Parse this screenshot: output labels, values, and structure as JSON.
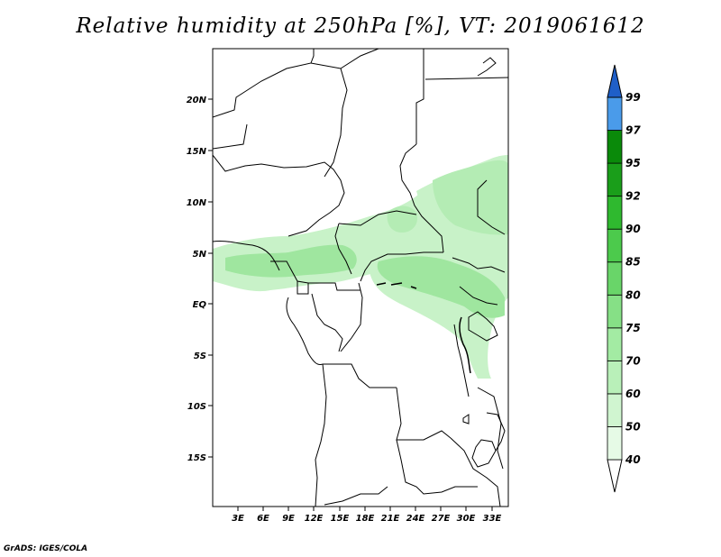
{
  "title": "Relative humidity at 250hPa [%], VT: 2019061612",
  "credit": "GrADS: IGES/COLA",
  "map": {
    "lon_range": [
      0,
      35
    ],
    "lat_range": [
      -20,
      25
    ],
    "lon_ticks": [
      "3E",
      "6E",
      "9E",
      "12E",
      "15E",
      "18E",
      "21E",
      "24E",
      "27E",
      "30E",
      "33E"
    ],
    "lat_ticks": [
      "20N",
      "15N",
      "10N",
      "5N",
      "EQ",
      "5S",
      "10S",
      "15S"
    ]
  },
  "colorbar": {
    "levels": [
      "40",
      "50",
      "60",
      "70",
      "75",
      "80",
      "85",
      "90",
      "92",
      "95",
      "97",
      "99"
    ],
    "colors": [
      "#ffffff",
      "#e6fae6",
      "#d0f5d0",
      "#b9f0b9",
      "#a3eba3",
      "#86e086",
      "#69d569",
      "#4cca4c",
      "#2fb92f",
      "#1a9e1a",
      "#0a8a0a",
      "#4a9bea",
      "#2673d9",
      "#1f5fc8"
    ]
  }
}
